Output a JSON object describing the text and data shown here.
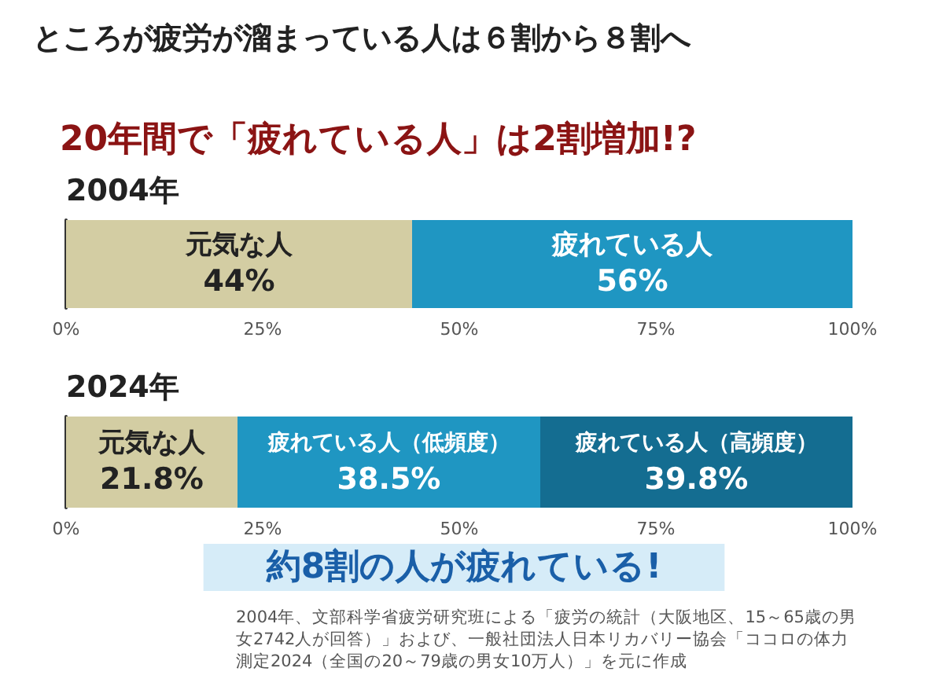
{
  "chart_data": [
    {
      "type": "bar",
      "title": "ところが疲労が溜まっている人は６割から８割へ",
      "subtitle": "20年間で「疲れている人」は2割増加!?",
      "orientation": "horizontal",
      "stacked": true,
      "categories": [
        "2004年"
      ],
      "series": [
        {
          "name": "元気な人",
          "color": "#d3cda3",
          "values": [
            44
          ],
          "value_labels": [
            "44%"
          ]
        },
        {
          "name": "疲れている人",
          "color": "#1f96c2",
          "values": [
            56
          ],
          "value_labels": [
            "56%"
          ]
        }
      ],
      "xlim": [
        0,
        100
      ],
      "xticks": [
        {
          "value": 0,
          "label": "0%"
        },
        {
          "value": 25,
          "label": "25%"
        },
        {
          "value": 50,
          "label": "50%"
        },
        {
          "value": 75,
          "label": "75%"
        },
        {
          "value": 100,
          "label": "100%"
        }
      ],
      "legend": false
    },
    {
      "type": "bar",
      "orientation": "horizontal",
      "stacked": true,
      "categories": [
        "2024年"
      ],
      "series": [
        {
          "name": "元気な人",
          "color": "#d3cda3",
          "values": [
            21.8
          ],
          "value_labels": [
            "21.8%"
          ]
        },
        {
          "name": "疲れている人（低頻度）",
          "color": "#1f96c2",
          "values": [
            38.5
          ],
          "value_labels": [
            "38.5%"
          ]
        },
        {
          "name": "疲れている人（高頻度）",
          "color": "#146d91",
          "values": [
            39.8
          ],
          "value_labels": [
            "39.8%"
          ]
        }
      ],
      "xlim": [
        0,
        100
      ],
      "xticks": [
        {
          "value": 0,
          "label": "0%"
        },
        {
          "value": 25,
          "label": "25%"
        },
        {
          "value": 50,
          "label": "50%"
        },
        {
          "value": 75,
          "label": "75%"
        },
        {
          "value": 100,
          "label": "100%"
        }
      ],
      "legend": false,
      "annotations": [
        "約8割の人が疲れている!",
        "2004年、文部科学省疲労研究班による「疲労の統計（大阪地区、15～65歳の男女2742人が回答）」および、一般社団法人日本リカバリー協会「ココロの体力測定2024（全国の20～79歳の男女10万人）」を元に作成"
      ]
    }
  ]
}
